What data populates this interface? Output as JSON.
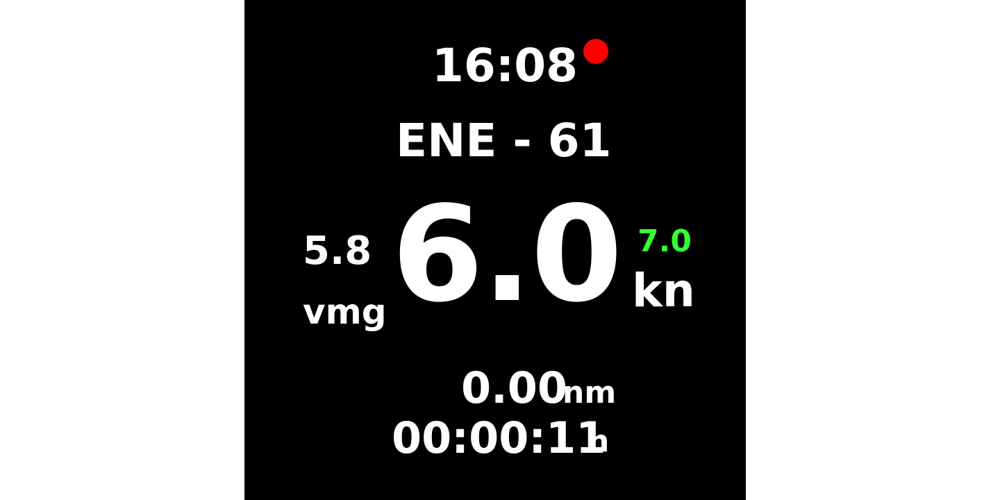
{
  "colors": {
    "background": "#000000",
    "text": "#ffffff",
    "target_speed": "#33ff33",
    "recording_indicator": "#ff0000"
  },
  "status": {
    "clock": "16:08",
    "recording_icon": "red-dot-icon"
  },
  "heading": {
    "text": "ENE - 61"
  },
  "vmg": {
    "value": "5.8",
    "label": "vmg"
  },
  "speed": {
    "value": "6.0",
    "target": "7.0",
    "unit": "kn"
  },
  "distance": {
    "value": "0.00",
    "unit": "nm"
  },
  "elapsed": {
    "value": "00:00:11",
    "unit": "h"
  }
}
